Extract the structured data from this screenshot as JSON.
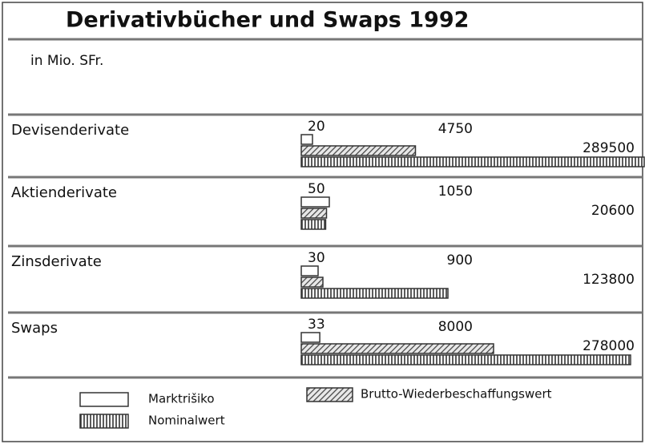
{
  "chart_data": {
    "type": "bar",
    "orientation": "horizontal",
    "title": "Derivativbücher und Swaps 1992",
    "subtitle": "in Mio. SFr.",
    "categories": [
      "Devisenderivate",
      "Aktienderivate",
      "Zinsderivate",
      "Swaps"
    ],
    "series": [
      {
        "name": "Marktrišiko",
        "color": "#ffffff",
        "values": [
          20,
          50,
          30,
          33
        ]
      },
      {
        "name": "Brutto-Wiederbeschaffungswert",
        "color": "#9a9a9a",
        "values": [
          4750,
          1050,
          900,
          8000
        ]
      },
      {
        "name": "Nominalwert",
        "color": "#d0d0d0",
        "values": [
          289500,
          20600,
          123800,
          278000
        ]
      }
    ]
  }
}
